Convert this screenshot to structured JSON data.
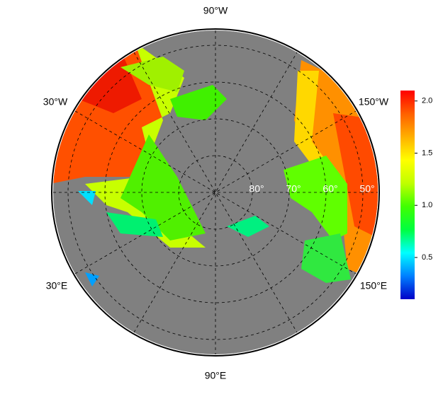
{
  "longitude_labels": [
    "90°W",
    "30°W",
    "150°W",
    "30°E",
    "150°E",
    "90°E"
  ],
  "latitude_labels": [
    "80°",
    "70°",
    "60°",
    "50°"
  ],
  "colorbar": {
    "lim": [
      0.1,
      2.1
    ],
    "ticks": [
      0.5,
      {
        "value": 1.0,
        "label": "1.0"
      },
      1.5,
      {
        "value": 2.0,
        "label": "2.0"
      }
    ],
    "colors": [
      "#0000c8",
      "#0080ff",
      "#00ffff",
      "#00ff40",
      "#40ff00",
      "#c0ff00",
      "#ffff00",
      "#ffb000",
      "#ff6000",
      "#ff0000"
    ]
  }
}
